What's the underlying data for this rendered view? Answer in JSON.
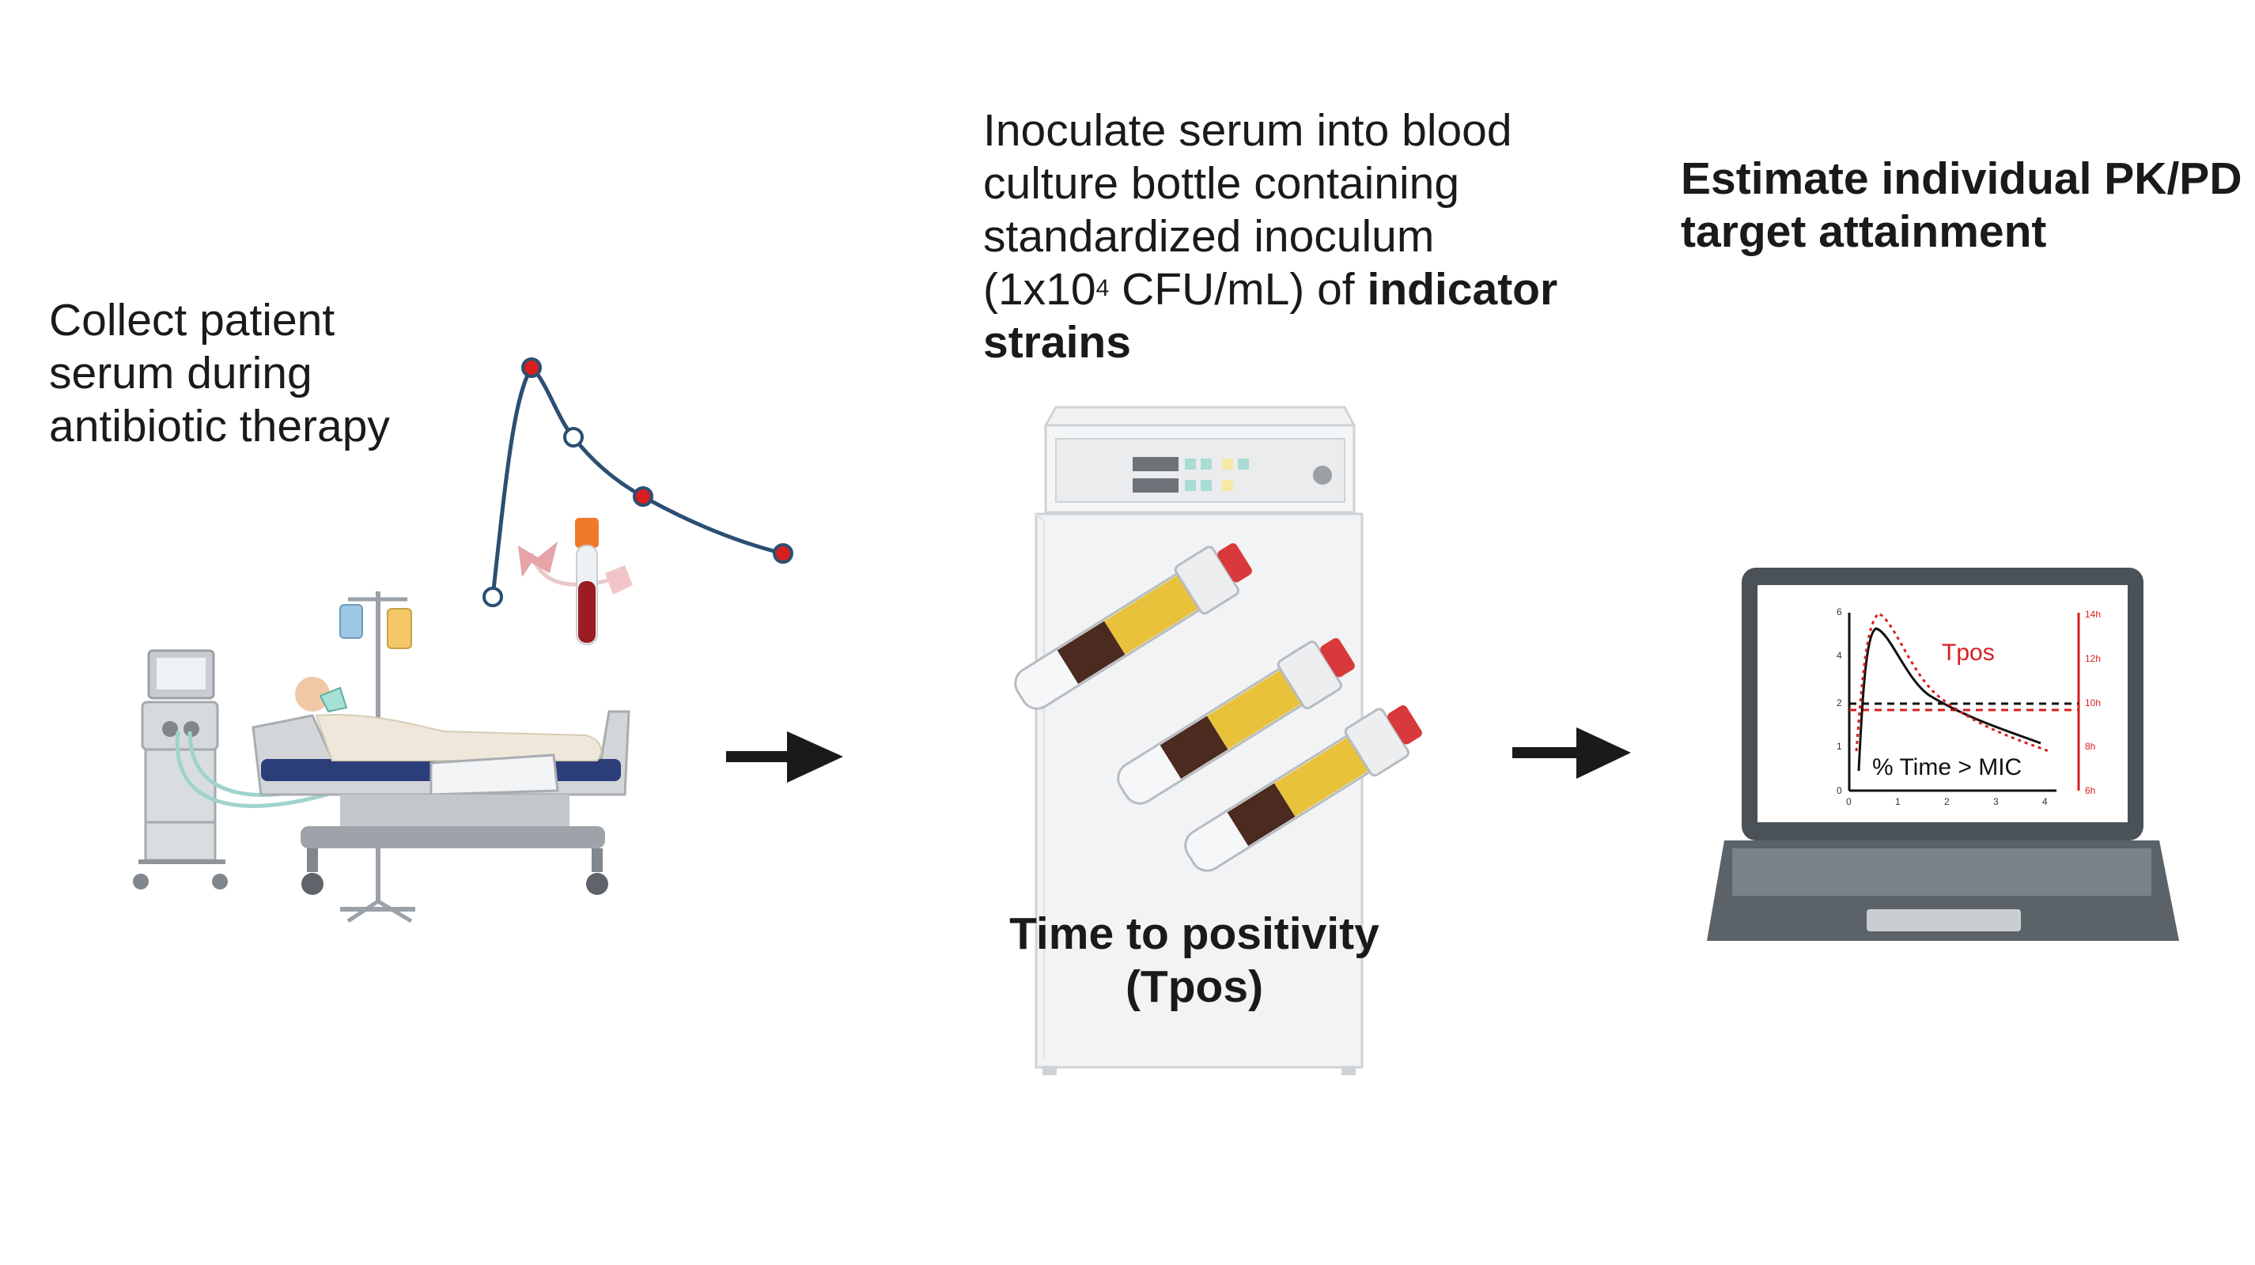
{
  "step1": {
    "lines": [
      "Collect patient",
      "serum during",
      "antibiotic therapy"
    ]
  },
  "step2": {
    "line1": "Inoculate serum into blood",
    "line2": "culture bottle containing",
    "line3": "standardized inoculum",
    "line4_a": "(1x10",
    "line4_sup": "4",
    "line4_b": " CFU/mL) of ",
    "line4_bold": "indicator",
    "line5_bold": "strains"
  },
  "step3": {
    "lines": [
      "Estimate individual PK/PD",
      "target attainment"
    ]
  },
  "incubator": {
    "tpos_lines": [
      "Time to positivity",
      "(Tpos)"
    ]
  },
  "laptop_chart": {
    "tpos_label": "Tpos",
    "mic_label": "% Time > MIC",
    "left_ticks": [
      "0",
      "1",
      "2",
      "4",
      "6"
    ],
    "right_ticks": [
      "6h",
      "8h",
      "10h",
      "12h",
      "14h"
    ],
    "x_ticks": [
      "0",
      "1",
      "2",
      "3",
      "4"
    ]
  },
  "colors": {
    "curve_blue": "#2b4f73",
    "marker_red": "#d81e1e",
    "arrow": "#1a1a1a",
    "tpos_red": "#d81e1e"
  }
}
